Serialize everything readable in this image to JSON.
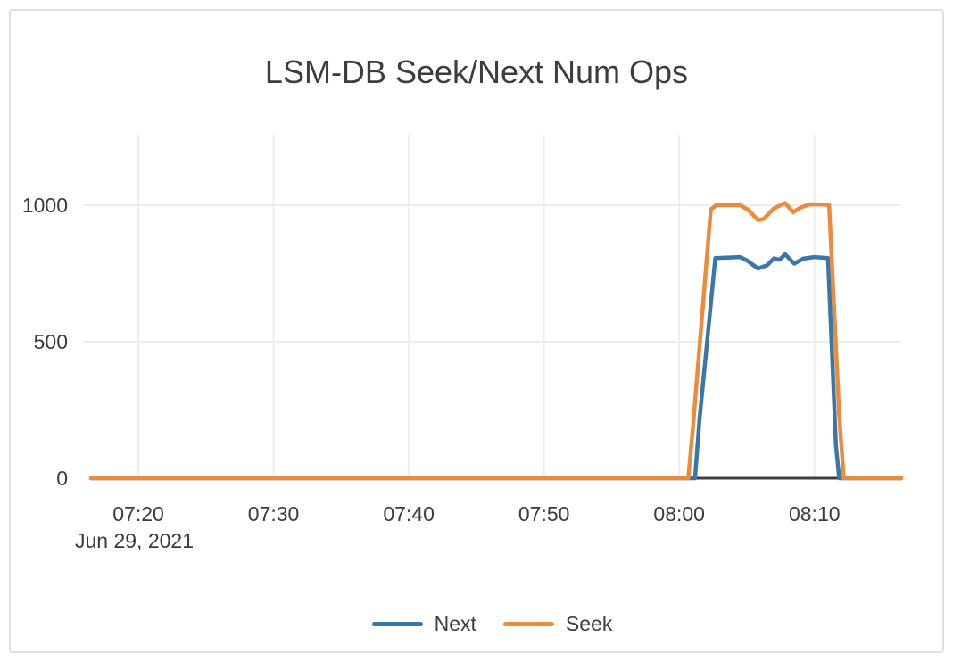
{
  "chart_data": {
    "type": "line",
    "title": "LSM-DB Seek/Next Num Ops",
    "x_axis": {
      "date_label": "Jun 29, 2021",
      "ticks": [
        "07:20",
        "07:30",
        "07:40",
        "07:50",
        "08:00",
        "08:10"
      ],
      "range": [
        "07:16:30",
        "08:16:25"
      ],
      "grid": true
    },
    "y_axis": {
      "ticks": [
        0,
        500,
        1000
      ],
      "range": [
        0,
        1258
      ],
      "grid": true,
      "zero_line": true
    },
    "legend": {
      "position": "bottom-center"
    },
    "series": [
      {
        "name": "Next",
        "color": "#3B76A9",
        "points": [
          [
            "07:16:30",
            0
          ],
          [
            "08:01:10",
            0
          ],
          [
            "08:01:30",
            215
          ],
          [
            "08:02:40",
            806
          ],
          [
            "08:03:30",
            808
          ],
          [
            "08:04:30",
            810
          ],
          [
            "08:05:00",
            798
          ],
          [
            "08:05:50",
            768
          ],
          [
            "08:06:30",
            780
          ],
          [
            "08:07:00",
            805
          ],
          [
            "08:07:25",
            800
          ],
          [
            "08:07:50",
            820
          ],
          [
            "08:08:30",
            786
          ],
          [
            "08:09:10",
            804
          ],
          [
            "08:10:00",
            810
          ],
          [
            "08:11:00",
            806
          ],
          [
            "08:11:35",
            120
          ],
          [
            "08:11:50",
            0
          ],
          [
            "08:16:25",
            0
          ]
        ]
      },
      {
        "name": "Seek",
        "color": "#ED8A3B",
        "points": [
          [
            "07:16:30",
            0
          ],
          [
            "08:00:40",
            0
          ],
          [
            "08:01:00",
            180
          ],
          [
            "08:02:20",
            985
          ],
          [
            "08:02:45",
            1000
          ],
          [
            "08:04:30",
            1000
          ],
          [
            "08:05:05",
            984
          ],
          [
            "08:05:50",
            945
          ],
          [
            "08:06:15",
            950
          ],
          [
            "08:07:00",
            988
          ],
          [
            "08:07:50",
            1008
          ],
          [
            "08:08:25",
            974
          ],
          [
            "08:09:00",
            992
          ],
          [
            "08:09:40",
            1003
          ],
          [
            "08:10:45",
            1002
          ],
          [
            "08:11:05",
            1000
          ],
          [
            "08:11:50",
            230
          ],
          [
            "08:12:10",
            0
          ],
          [
            "08:16:25",
            0
          ]
        ]
      }
    ]
  },
  "colors": {
    "background": "#ffffff",
    "card_border": "#dfdfdf",
    "grid": "#ededed",
    "zero_line": "#3f3f3f",
    "text": "#3b3b3b"
  }
}
